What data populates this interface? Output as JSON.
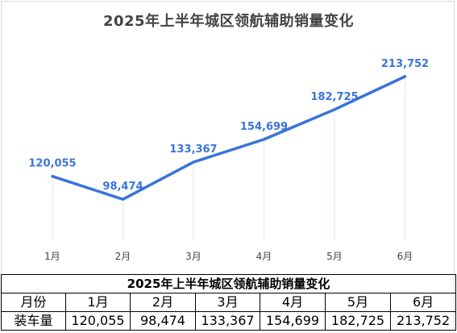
{
  "chart_data": {
    "type": "line",
    "title": "2025年上半年城区领航辅助销量变化",
    "categories": [
      "1月",
      "2月",
      "3月",
      "4月",
      "5月",
      "6月"
    ],
    "series": [
      {
        "values": [
          120055,
          98474,
          133367,
          154699,
          182725,
          213752
        ],
        "labels": [
          "120,055",
          "98,474",
          "133,367",
          "154,699",
          "182,725",
          "213,752"
        ]
      }
    ],
    "xlabel": "",
    "ylabel": "",
    "ylim": [
      60000,
      225000
    ],
    "grid": false,
    "line_color": "#3a74d9",
    "label_color": "#3a74d9"
  },
  "table": {
    "title": "2025年上半年城区领航辅助销量变化",
    "header_label": "月份",
    "row_label": "装车量",
    "months": [
      "1月",
      "2月",
      "3月",
      "4月",
      "5月",
      "6月"
    ],
    "values": [
      "120,055",
      "98,474",
      "133,367",
      "154,699",
      "182,725",
      "213,752"
    ]
  }
}
